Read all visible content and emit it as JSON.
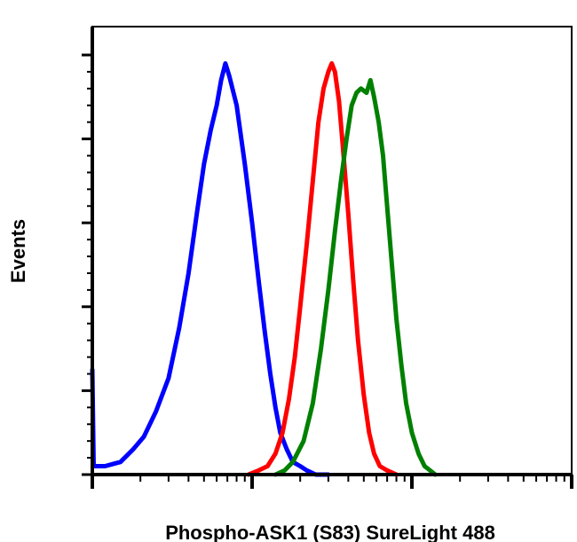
{
  "chart_data": {
    "type": "line",
    "title": "",
    "xlabel": "Phospho-ASK1 (S83) SureLight 488",
    "ylabel": "Events",
    "x_scale": "log",
    "xlim": [
      1,
      1000
    ],
    "ylim": [
      0,
      100
    ],
    "grid": false,
    "legend": "none",
    "series": [
      {
        "color": "#0000ff",
        "points": [
          [
            1.0,
            25
          ],
          [
            1.02,
            2
          ],
          [
            1.2,
            2
          ],
          [
            1.5,
            3
          ],
          [
            1.8,
            6
          ],
          [
            2.1,
            9
          ],
          [
            2.5,
            15
          ],
          [
            3.0,
            23
          ],
          [
            3.5,
            35
          ],
          [
            4.0,
            48
          ],
          [
            4.5,
            62
          ],
          [
            5.0,
            74
          ],
          [
            5.5,
            82
          ],
          [
            6.0,
            88
          ],
          [
            6.4,
            94
          ],
          [
            6.8,
            98
          ],
          [
            7.2,
            95
          ],
          [
            8.0,
            88
          ],
          [
            9.0,
            74
          ],
          [
            10.0,
            60
          ],
          [
            11.0,
            46
          ],
          [
            12.0,
            34
          ],
          [
            13.0,
            24
          ],
          [
            14.0,
            16
          ],
          [
            15.0,
            10
          ],
          [
            16.5,
            6
          ],
          [
            18.0,
            3
          ],
          [
            20.0,
            2
          ],
          [
            22.0,
            1
          ],
          [
            25.0,
            0
          ],
          [
            30.0,
            0
          ]
        ]
      },
      {
        "color": "#ff0000",
        "points": [
          [
            9.5,
            0
          ],
          [
            11.0,
            1
          ],
          [
            12.5,
            2
          ],
          [
            14.0,
            5
          ],
          [
            15.5,
            10
          ],
          [
            17.0,
            18
          ],
          [
            18.5,
            28
          ],
          [
            20.0,
            40
          ],
          [
            22.0,
            55
          ],
          [
            24.0,
            70
          ],
          [
            26.0,
            84
          ],
          [
            28.0,
            92
          ],
          [
            30.0,
            96
          ],
          [
            31.5,
            98
          ],
          [
            33.0,
            96
          ],
          [
            35.0,
            89
          ],
          [
            37.0,
            78
          ],
          [
            40.0,
            62
          ],
          [
            43.0,
            46
          ],
          [
            46.0,
            32
          ],
          [
            50.0,
            19
          ],
          [
            54.0,
            10
          ],
          [
            58.0,
            5
          ],
          [
            63.0,
            2
          ],
          [
            70.0,
            1
          ],
          [
            80.0,
            0
          ]
        ]
      },
      {
        "color": "#008000",
        "points": [
          [
            14.0,
            0
          ],
          [
            16.0,
            1
          ],
          [
            18.0,
            3
          ],
          [
            21.0,
            8
          ],
          [
            24.0,
            17
          ],
          [
            27.0,
            30
          ],
          [
            30.0,
            44
          ],
          [
            33.0,
            58
          ],
          [
            36.0,
            70
          ],
          [
            39.0,
            80
          ],
          [
            42.0,
            88
          ],
          [
            45.0,
            91
          ],
          [
            48.0,
            92
          ],
          [
            52.0,
            91
          ],
          [
            55.0,
            94
          ],
          [
            58.0,
            90
          ],
          [
            62.0,
            84
          ],
          [
            66.0,
            76
          ],
          [
            70.0,
            64
          ],
          [
            75.0,
            50
          ],
          [
            80.0,
            37
          ],
          [
            86.0,
            26
          ],
          [
            92.0,
            17
          ],
          [
            100.0,
            10
          ],
          [
            110.0,
            5
          ],
          [
            120.0,
            2
          ],
          [
            130.0,
            1
          ],
          [
            140.0,
            0
          ]
        ]
      }
    ]
  }
}
